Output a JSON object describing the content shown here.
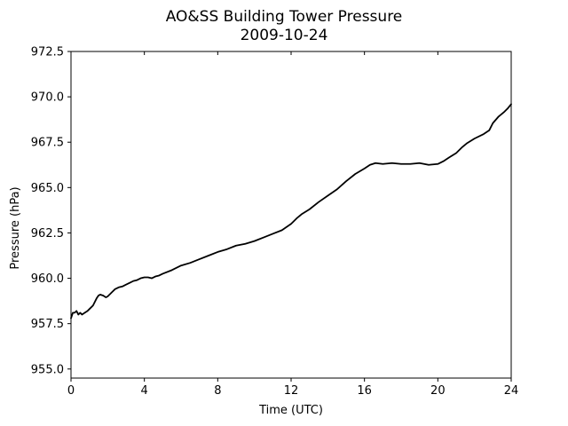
{
  "chart_data": {
    "type": "line",
    "title": "AO&SS Building Tower Pressure",
    "subtitle": "2009-10-24",
    "xlabel": "Time (UTC)",
    "ylabel": "Pressure (hPa)",
    "xlim": [
      0,
      24
    ],
    "ylim": [
      954.5,
      972.5
    ],
    "xticks": [
      0,
      4,
      8,
      12,
      16,
      20,
      24
    ],
    "xtick_labels": [
      "0",
      "4",
      "8",
      "12",
      "16",
      "20",
      "24"
    ],
    "yticks": [
      955.0,
      957.5,
      960.0,
      962.5,
      965.0,
      967.5,
      970.0,
      972.5
    ],
    "ytick_labels": [
      "955.0",
      "957.5",
      "960.0",
      "962.5",
      "965.0",
      "967.5",
      "970.0",
      "972.5"
    ],
    "grid": false,
    "legend": "none",
    "series": [
      {
        "color": "#000000",
        "x": [
          0.0,
          0.1,
          0.2,
          0.3,
          0.4,
          0.5,
          0.6,
          0.75,
          0.9,
          1.0,
          1.2,
          1.4,
          1.5,
          1.6,
          1.75,
          1.9,
          2.0,
          2.2,
          2.4,
          2.6,
          2.8,
          3.0,
          3.2,
          3.4,
          3.6,
          3.8,
          4.0,
          4.2,
          4.4,
          4.6,
          4.8,
          5.0,
          5.5,
          6.0,
          6.5,
          7.0,
          7.5,
          8.0,
          8.5,
          9.0,
          9.5,
          10.0,
          10.5,
          11.0,
          11.5,
          12.0,
          12.3,
          12.6,
          13.0,
          13.5,
          14.0,
          14.5,
          15.0,
          15.5,
          16.0,
          16.3,
          16.6,
          17.0,
          17.5,
          18.0,
          18.5,
          19.0,
          19.5,
          20.0,
          20.3,
          20.6,
          21.0,
          21.3,
          21.6,
          22.0,
          22.5,
          22.8,
          23.0,
          23.3,
          23.6,
          23.8,
          24.0
        ],
        "y": [
          957.8,
          958.1,
          958.1,
          958.2,
          958.0,
          958.1,
          958.0,
          958.1,
          958.2,
          958.3,
          958.5,
          958.9,
          959.05,
          959.1,
          959.05,
          958.95,
          959.0,
          959.2,
          959.4,
          959.5,
          959.55,
          959.65,
          959.75,
          959.85,
          959.9,
          960.0,
          960.05,
          960.05,
          960.0,
          960.1,
          960.15,
          960.25,
          960.45,
          960.7,
          960.85,
          961.05,
          961.25,
          961.45,
          961.6,
          961.8,
          961.9,
          962.05,
          962.25,
          962.45,
          962.65,
          963.0,
          963.3,
          963.55,
          963.8,
          964.2,
          964.55,
          964.9,
          965.35,
          965.75,
          966.05,
          966.25,
          966.35,
          966.3,
          966.35,
          966.3,
          966.3,
          966.35,
          966.25,
          966.3,
          966.45,
          966.65,
          966.9,
          967.2,
          967.45,
          967.7,
          967.95,
          968.15,
          968.55,
          968.9,
          969.15,
          969.35,
          969.6
        ]
      }
    ]
  }
}
